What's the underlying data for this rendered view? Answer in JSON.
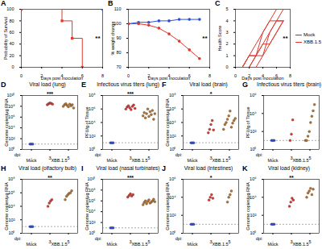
{
  "chart_data": [
    {
      "panel": "A",
      "type": "line",
      "x_label": "Days post inoculation",
      "y_label": "Probability of Survival",
      "xlim": [
        0,
        8
      ],
      "xticks": [
        0,
        2,
        4,
        6,
        8
      ],
      "ylim": [
        0,
        100
      ],
      "yticks": [
        0,
        20,
        40,
        60,
        80,
        100
      ],
      "line_style": "step",
      "annotations": [
        "**"
      ],
      "series": [
        {
          "name": "Mock",
          "color": "#2f4fd6",
          "marker": "square",
          "x": [
            0,
            8
          ],
          "values": [
            100,
            100
          ]
        },
        {
          "name": "XBB.1.5",
          "color": "#e0362c",
          "marker": "square",
          "x": [
            0,
            4,
            5,
            6
          ],
          "values": [
            100,
            80,
            50,
            0
          ]
        }
      ]
    },
    {
      "panel": "B",
      "type": "line",
      "x_label": "Days post inoculation",
      "y_label": "% weight change",
      "xlim": [
        0,
        8
      ],
      "xticks": [
        0,
        2,
        4,
        6,
        8
      ],
      "ylim": [
        70,
        110
      ],
      "yticks": [
        70,
        80,
        90,
        100,
        110
      ],
      "annotations": [
        "**"
      ],
      "x": [
        0,
        1,
        2,
        3,
        4,
        5,
        6,
        7
      ],
      "series": [
        {
          "name": "Mock",
          "color": "#2f4fd6",
          "marker": "circle",
          "values": [
            100,
            101,
            101,
            102,
            102,
            103,
            103,
            103
          ]
        },
        {
          "name": "XBB.1.5",
          "color": "#e0362c",
          "marker": "circle",
          "values": [
            100,
            100,
            99,
            97,
            93,
            88,
            82,
            76
          ]
        }
      ]
    },
    {
      "panel": "C",
      "type": "line",
      "x_label": "Days post inoculation",
      "y_label": "Health Score",
      "xlim": [
        0,
        8
      ],
      "xticks": [
        0,
        2,
        4,
        6,
        8
      ],
      "ylim": [
        0,
        5
      ],
      "yticks": [
        0,
        1,
        2,
        3,
        4,
        5
      ],
      "legend": "right",
      "annotations": [
        "**"
      ],
      "x": [
        0,
        1,
        2,
        3,
        4,
        5,
        6,
        7
      ],
      "series": [
        {
          "name": "Mock",
          "color": "#2f4fd6",
          "values": [
            [
              0,
              0,
              0,
              0,
              0,
              0,
              0,
              0
            ]
          ]
        },
        {
          "name": "XBB.1.5",
          "color": "#e0362c",
          "values": [
            [
              0,
              0,
              1,
              1,
              2,
              3,
              4,
              4
            ],
            [
              0,
              0,
              0,
              1,
              1,
              3,
              4,
              5
            ],
            [
              0,
              0,
              1,
              2,
              3,
              4,
              4,
              4
            ],
            [
              0,
              0,
              0,
              1,
              2,
              2,
              3,
              4
            ],
            [
              0,
              0,
              1,
              1,
              3,
              4,
              5,
              5
            ],
            [
              0,
              0,
              0,
              0,
              1,
              2,
              3,
              4
            ]
          ]
        }
      ]
    },
    {
      "panel": "D",
      "type": "scatter",
      "title": "Viral load (lung)",
      "y_label": "Genome copies/µg RNA",
      "log": "y",
      "x_label": "dpi:",
      "group_labels": [
        "Mock",
        "XBB.1.5"
      ],
      "categories": [
        "-",
        "3",
        "5"
      ],
      "colors": [
        "#2f4fd6",
        "#e0362c",
        "#b8722c"
      ],
      "limit_of_detection": 10,
      "annotations": [
        "***"
      ],
      "ylim": [
        1,
        10000000000.0
      ],
      "yticks": [
        {
          "value": 1,
          "label": "10⁰"
        },
        {
          "value": 100,
          "label": "10²"
        },
        {
          "value": 10000,
          "label": "10⁴"
        },
        {
          "value": 1000000,
          "label": "10⁶"
        },
        {
          "value": 100000000,
          "label": "10⁸"
        },
        {
          "value": 10000000000,
          "label": "10¹⁰"
        }
      ],
      "values": [
        [
          10,
          10,
          10
        ],
        [
          200000000.0,
          300000000.0,
          400000000.0,
          350000000.0,
          250000000.0
        ],
        [
          100000000.0,
          200000000.0,
          300000000.0,
          150000000.0,
          80000000.0,
          250000000.0,
          120000000.0,
          200000000.0,
          50000000.0
        ]
      ]
    },
    {
      "panel": "E",
      "type": "scatter",
      "title": "Infectious virus titers (lung)",
      "y_label": "PFU/g of Tissue",
      "log": "y",
      "x_label": "dpi:",
      "group_labels": [
        "Mock",
        "XBB.1.5"
      ],
      "categories": [
        "-",
        "3",
        "5"
      ],
      "colors": [
        "#2f4fd6",
        "#e0362c",
        "#b8722c"
      ],
      "limit_of_detection": 10,
      "annotations": [
        "***"
      ],
      "ylim": [
        1,
        100000000.0
      ],
      "yticks": [
        {
          "value": 1,
          "label": "10⁰"
        },
        {
          "value": 100,
          "label": "10²"
        },
        {
          "value": 10000,
          "label": "10⁴"
        },
        {
          "value": 1000000,
          "label": "10⁶"
        },
        {
          "value": 100000000,
          "label": "10⁸"
        }
      ],
      "values": [
        [
          10,
          10,
          10
        ],
        [
          1000000.0,
          2000000.0,
          3000000.0,
          1500000.0,
          800000.0,
          2500000.0,
          4000000.0,
          1200000.0
        ],
        [
          100000.0,
          300000.0,
          50000.0,
          200000.0,
          1000000.0,
          80000.0,
          400000.0,
          150000.0,
          600000.0,
          30000.0,
          200000.0
        ]
      ]
    },
    {
      "panel": "F",
      "type": "scatter",
      "title": "Viral load (brain)",
      "y_label": "Genome copies/µg RNA",
      "log": "y",
      "x_label": "dpi:",
      "group_labels": [
        "Mock",
        "XBB.1.5"
      ],
      "categories": [
        "-",
        "3",
        "5"
      ],
      "colors": [
        "#2f4fd6",
        "#e0362c",
        "#b8722c"
      ],
      "limit_of_detection": 10,
      "annotations": [
        "*"
      ],
      "ylim": [
        1,
        100000000.0
      ],
      "yticks": [
        {
          "value": 1,
          "label": "10⁰"
        },
        {
          "value": 100,
          "label": "10²"
        },
        {
          "value": 10000,
          "label": "10⁴"
        },
        {
          "value": 1000000,
          "label": "10⁶"
        },
        {
          "value": 100000000,
          "label": "10⁸"
        }
      ],
      "values": [
        [
          10,
          10,
          10
        ],
        [
          300,
          1000,
          5000,
          20000,
          800
        ],
        [
          1000,
          5000,
          10000,
          30000,
          100000,
          500000,
          2000,
          8000,
          20000,
          40000
        ]
      ]
    },
    {
      "panel": "G",
      "type": "scatter",
      "title": "Infectious virus titers (brain)",
      "y_label": "PFU/g of Tissue",
      "log": "y",
      "x_label": "dpi:",
      "group_labels": [
        "Mock",
        "XBB.1.5"
      ],
      "categories": [
        "-",
        "3",
        "5"
      ],
      "colors": [
        "#2f4fd6",
        "#e0362c",
        "#b8722c"
      ],
      "limit_of_detection": 10,
      "ylim": [
        1,
        1000000
      ],
      "yticks": [
        {
          "value": 1,
          "label": "10⁰"
        },
        {
          "value": 100,
          "label": "10²"
        },
        {
          "value": 10000,
          "label": "10⁴"
        },
        {
          "value": 1000000,
          "label": "10⁶"
        }
      ],
      "values": [
        [
          10,
          10,
          10
        ],
        [
          10,
          50,
          2000
        ],
        [
          10,
          10,
          30,
          100,
          1000,
          5000,
          20000,
          100000
        ]
      ]
    },
    {
      "panel": "H",
      "type": "scatter",
      "title": "Viral load (olfactory bulb)",
      "y_label": "Genome copies/µg RNA",
      "log": "y",
      "x_label": "dpi:",
      "group_labels": [
        "Mock",
        "XBB.1.5"
      ],
      "categories": [
        "-",
        "3",
        "5"
      ],
      "colors": [
        "#2f4fd6",
        "#e0362c",
        "#b8722c"
      ],
      "limit_of_detection": 10,
      "annotations": [
        "**"
      ],
      "ylim": [
        1,
        100000000.0
      ],
      "yticks": [
        {
          "value": 1,
          "label": "10⁰"
        },
        {
          "value": 100,
          "label": "10²"
        },
        {
          "value": 10000,
          "label": "10⁴"
        },
        {
          "value": 1000000,
          "label": "10⁶"
        },
        {
          "value": 100000000,
          "label": "10⁸"
        }
      ],
      "values": [
        [
          10,
          10,
          10
        ],
        [
          10000,
          30000,
          60000,
          100000
        ],
        [
          100000,
          300000,
          500000,
          800000,
          1000000,
          2000000
        ]
      ]
    },
    {
      "panel": "I",
      "type": "scatter",
      "title": "Viral load (nasal turbinates)",
      "y_label": "Genome copies/µg RNA",
      "log": "y",
      "x_label": "dpi:",
      "group_labels": [
        "Mock",
        "XBB.1.5"
      ],
      "categories": [
        "-",
        "3",
        "5"
      ],
      "colors": [
        "#2f4fd6",
        "#e0362c",
        "#b8722c"
      ],
      "limit_of_detection": 10,
      "annotations": [
        "***"
      ],
      "ylim": [
        1,
        10000000000.0
      ],
      "yticks": [
        {
          "value": 1,
          "label": "10⁰"
        },
        {
          "value": 100,
          "label": "10²"
        },
        {
          "value": 10000,
          "label": "10⁴"
        },
        {
          "value": 1000000,
          "label": "10⁶"
        },
        {
          "value": 100000000,
          "label": "10⁸"
        },
        {
          "value": 10000000000,
          "label": "10¹⁰"
        }
      ],
      "values": [
        [
          10,
          10,
          10
        ],
        [
          5000000.0,
          10000000.0,
          20000000.0,
          8000000.0,
          15000000.0
        ],
        [
          200000.0,
          500000.0,
          1000000.0,
          300000.0,
          800000.0,
          1500000.0,
          400000.0,
          600000.0,
          1000000.0,
          2000000.0,
          700000.0
        ]
      ]
    },
    {
      "panel": "J",
      "type": "scatter",
      "title": "Viral load (intestines)",
      "y_label": "Genome copies/µg RNA",
      "log": "y",
      "x_label": "dpi:",
      "group_labels": [
        "Mock",
        "XBB.1.5"
      ],
      "categories": [
        "-",
        "3",
        "5"
      ],
      "colors": [
        "#2f4fd6",
        "#e0362c",
        "#b8722c"
      ],
      "limit_of_detection": 10,
      "annotations": [
        "*"
      ],
      "ylim": [
        1,
        1000000
      ],
      "yticks": [
        {
          "value": 1,
          "label": "10⁰"
        },
        {
          "value": 100,
          "label": "10²"
        },
        {
          "value": 10000,
          "label": "10⁴"
        },
        {
          "value": 1000000,
          "label": "10⁶"
        }
      ],
      "values": [
        [
          10,
          10,
          10
        ],
        [
          5000,
          10000,
          20000,
          8000
        ],
        [
          3000,
          10000,
          20000,
          50000
        ]
      ]
    },
    {
      "panel": "K",
      "type": "scatter",
      "title": "Viral load (kidney)",
      "y_label": "Genome copies/µg RNA",
      "log": "y",
      "x_label": "dpi:",
      "group_labels": [
        "Mock",
        "XBB.1.5"
      ],
      "categories": [
        "-",
        "3",
        "5"
      ],
      "colors": [
        "#2f4fd6",
        "#e0362c",
        "#b8722c"
      ],
      "limit_of_detection": 10,
      "annotations": [
        "**"
      ],
      "ylim": [
        1,
        1000000
      ],
      "yticks": [
        {
          "value": 1,
          "label": "10⁰"
        },
        {
          "value": 100,
          "label": "10²"
        },
        {
          "value": 10000,
          "label": "10⁴"
        },
        {
          "value": 1000000,
          "label": "10⁶"
        }
      ],
      "values": [
        [
          10,
          10,
          10
        ],
        [
          1000,
          3000,
          8000,
          5000
        ],
        [
          10000,
          30000,
          50000,
          100000,
          20000,
          80000
        ]
      ]
    }
  ]
}
